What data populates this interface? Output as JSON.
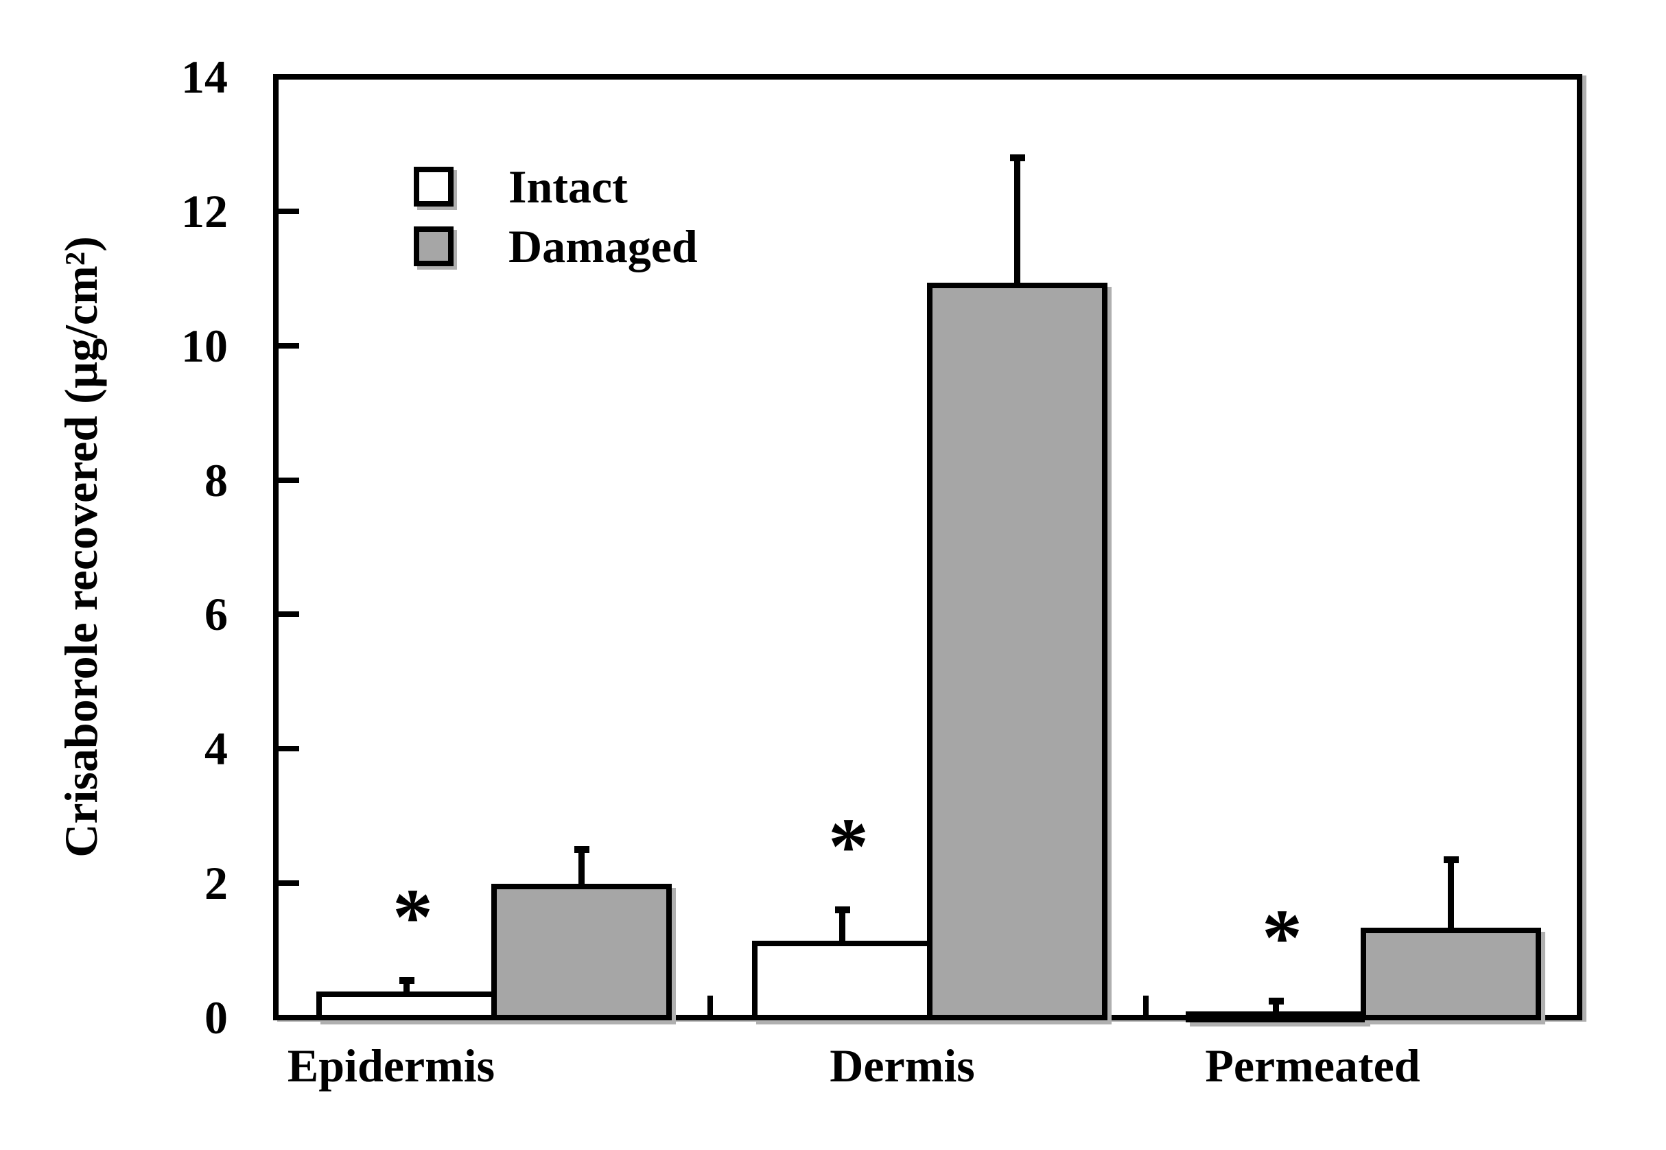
{
  "chart_data": {
    "type": "bar",
    "title": "",
    "xlabel": "",
    "ylabel": "Crisaborole recovered (µg/cm²)",
    "ylim": [
      0,
      14
    ],
    "yticks": [
      0,
      2,
      4,
      6,
      8,
      10,
      12,
      14
    ],
    "grid": false,
    "legend_position": "top-left-inside",
    "categories": [
      "Epidermis",
      "Dermis",
      "Permeated"
    ],
    "series": [
      {
        "name": "Intact",
        "fill": "#ffffff",
        "values": [
          0.35,
          1.1,
          0.05
        ],
        "errors": [
          0.2,
          0.5,
          0.2
        ],
        "significance": [
          true,
          true,
          true
        ]
      },
      {
        "name": "Damaged",
        "fill": "#a6a6a6",
        "values": [
          1.95,
          10.9,
          1.3
        ],
        "errors": [
          0.55,
          1.9,
          1.05
        ],
        "significance": [
          false,
          false,
          false
        ]
      }
    ],
    "annotation_symbol": "*",
    "error_bar_style": "upper-only-with-cap"
  },
  "colors": {
    "outline": "#000000",
    "intact_fill": "#ffffff",
    "damaged_fill": "#a6a6a6",
    "shadow": "#b0b0b0",
    "background": "#ffffff"
  }
}
